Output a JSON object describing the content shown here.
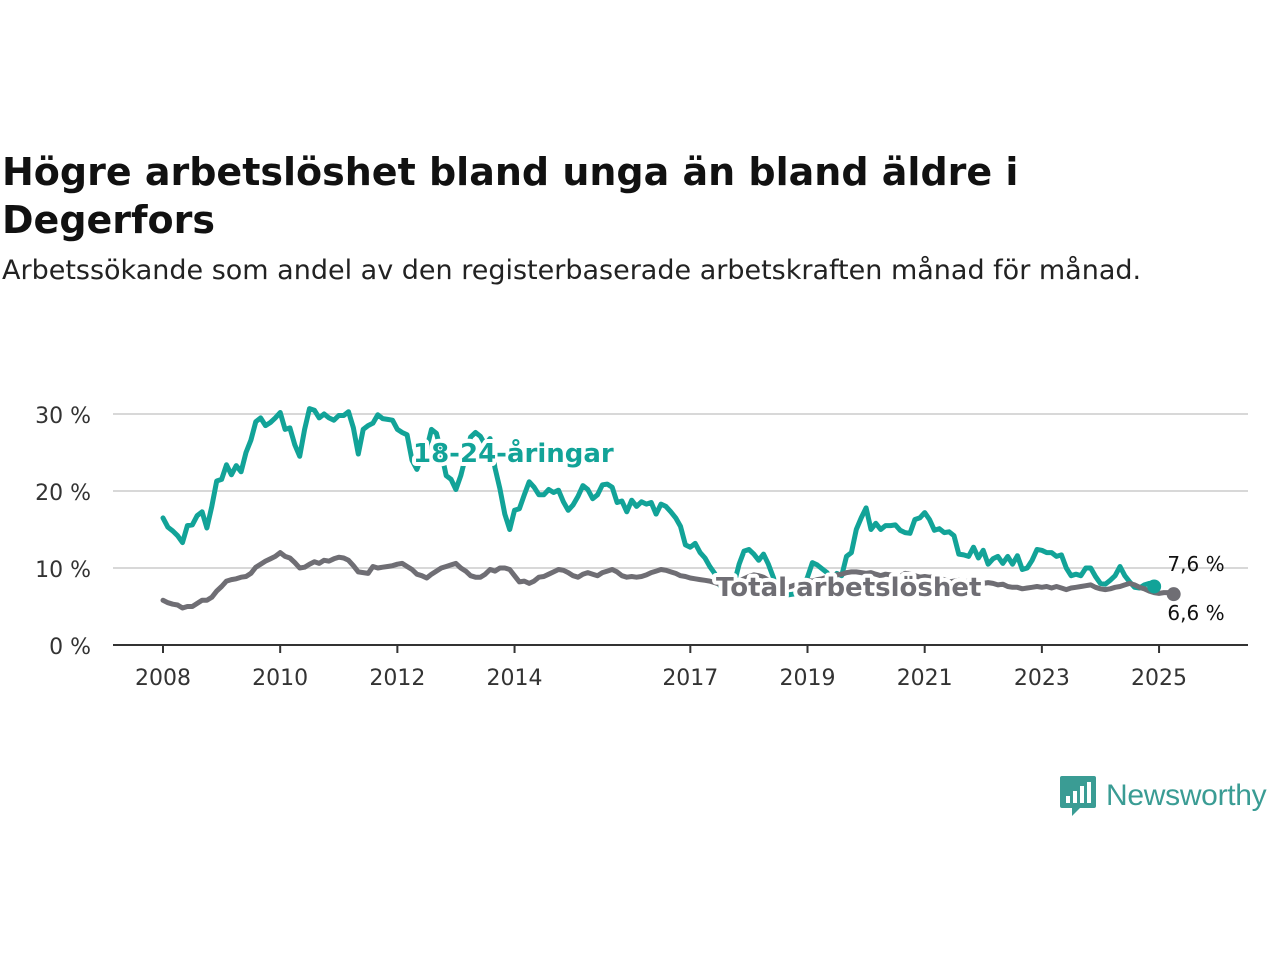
{
  "header": {
    "title": "Högre arbetslöshet bland unga än bland äldre i Degerfors",
    "subtitle": "Arbetssökande som andel av den registerbaserade arbetskraften månad för månad."
  },
  "branding": {
    "logo_text": "Newsworthy",
    "logo_icon": "bar-chart-speech-bubble-icon"
  },
  "colors": {
    "youth": "#12a398",
    "total": "#6f6e74",
    "grid": "#d8d8d8",
    "axis": "#333333"
  },
  "chart_data": {
    "type": "line",
    "title": "Högre arbetslöshet bland unga än bland äldre i Degerfors",
    "xlabel": "",
    "ylabel": "",
    "xlim": [
      2008,
      2025.75
    ],
    "ylim": [
      0,
      30
    ],
    "yticks": [
      0,
      10,
      20,
      30
    ],
    "ytick_labels": [
      "0 %",
      "10 %",
      "20 %",
      "30 %"
    ],
    "xticks": [
      2008,
      2010,
      2012,
      2014,
      2017,
      2019,
      2021,
      2023,
      2025
    ],
    "xtick_labels": [
      "2008",
      "2010",
      "2012",
      "2014",
      "2017",
      "2019",
      "2021",
      "2023",
      "2025"
    ],
    "grid": true,
    "series": [
      {
        "name": "18-24-åringar",
        "label": "18-24-åringar",
        "end_label": "7,6 %",
        "x_start": 2008,
        "step": 0.08333,
        "values": [
          16.5,
          15.3,
          14.8,
          14.2,
          13.3,
          15.5,
          15.6,
          16.8,
          17.3,
          15.2,
          18.0,
          21.3,
          21.5,
          23.4,
          22.1,
          23.3,
          22.5,
          25.0,
          26.6,
          29.0,
          29.5,
          28.5,
          28.9,
          29.5,
          30.2,
          28.0,
          28.2,
          26.0,
          24.5,
          28.0,
          30.7,
          30.5,
          29.5,
          30.0,
          29.5,
          29.2,
          29.8,
          29.8,
          30.3,
          28.2,
          24.8,
          28.0,
          28.5,
          28.8,
          29.9,
          29.4,
          29.3,
          29.2,
          28.0,
          27.6,
          27.3,
          24.0,
          22.8,
          24.5,
          25.5,
          28.0,
          27.5,
          25.0,
          22.0,
          21.5,
          20.2,
          22.0,
          24.5,
          27.0,
          27.6,
          27.1,
          26.0,
          26.8,
          23.0,
          20.3,
          17.0,
          15.0,
          17.5,
          17.7,
          19.5,
          21.2,
          20.5,
          19.5,
          19.5,
          20.2,
          19.8,
          20.1,
          18.6,
          17.5,
          18.2,
          19.3,
          20.7,
          20.2,
          19.0,
          19.5,
          20.8,
          20.9,
          20.5,
          18.5,
          18.7,
          17.3,
          18.8,
          18.0,
          18.6,
          18.3,
          18.5,
          17.0,
          18.3,
          18.0,
          17.3,
          16.5,
          15.4,
          13.0,
          12.7,
          13.2,
          12.0,
          11.3,
          10.2,
          9.3,
          7.8,
          6.8,
          6.6,
          8.0,
          10.5,
          12.2,
          12.4,
          11.8,
          11.0,
          11.8,
          10.5,
          8.8,
          7.0,
          6.5,
          6.5,
          6.6,
          6.8,
          7.5,
          8.8,
          10.7,
          10.4,
          9.9,
          9.4,
          8.4,
          9.3,
          9.0,
          11.5,
          12.0,
          15.0,
          16.5,
          17.8,
          15.0,
          15.8,
          15.0,
          15.5,
          15.5,
          15.6,
          14.9,
          14.6,
          14.5,
          16.3,
          16.5,
          17.2,
          16.3,
          14.9,
          15.1,
          14.6,
          14.7,
          14.2,
          11.8,
          11.7,
          11.5,
          12.7,
          11.3,
          12.3,
          10.5,
          11.2,
          11.5,
          10.6,
          11.5,
          10.5,
          11.6,
          9.8,
          10.0,
          11.0,
          12.4,
          12.3,
          12.0,
          12.0,
          11.5,
          11.7,
          10.0,
          9.0,
          9.2,
          9.0,
          10.0,
          10.0,
          8.9,
          8.0,
          7.9,
          8.4,
          9.0,
          10.2,
          9.0,
          8.2,
          7.5,
          7.4,
          7.8,
          8.0,
          7.6
        ]
      },
      {
        "name": "Total arbetslöshet",
        "label": "Total arbetslöshet",
        "end_label": "6,6 %",
        "x_start": 2008,
        "step": 0.08333,
        "values": [
          5.8,
          5.5,
          5.3,
          5.2,
          4.8,
          5.0,
          5.0,
          5.4,
          5.8,
          5.8,
          6.2,
          7.0,
          7.6,
          8.3,
          8.5,
          8.6,
          8.8,
          8.9,
          9.3,
          10.1,
          10.5,
          10.9,
          11.2,
          11.5,
          12.0,
          11.5,
          11.3,
          10.7,
          10.0,
          10.1,
          10.5,
          10.8,
          10.6,
          11.0,
          10.9,
          11.2,
          11.4,
          11.3,
          11.0,
          10.3,
          9.5,
          9.4,
          9.3,
          10.2,
          10.0,
          10.1,
          10.2,
          10.3,
          10.5,
          10.6,
          10.2,
          9.8,
          9.2,
          9.0,
          8.7,
          9.2,
          9.6,
          10.0,
          10.2,
          10.4,
          10.6,
          10.0,
          9.6,
          9.0,
          8.8,
          8.8,
          9.2,
          9.8,
          9.6,
          10.0,
          10.0,
          9.8,
          9.0,
          8.2,
          8.3,
          8.0,
          8.3,
          8.8,
          8.9,
          9.2,
          9.5,
          9.8,
          9.7,
          9.4,
          9.0,
          8.8,
          9.2,
          9.4,
          9.2,
          9.0,
          9.4,
          9.6,
          9.8,
          9.5,
          9.0,
          8.8,
          8.9,
          8.8,
          8.9,
          9.1,
          9.4,
          9.6,
          9.8,
          9.7,
          9.5,
          9.3,
          9.0,
          8.9,
          8.7,
          8.6,
          8.5,
          8.4,
          8.3,
          8.1,
          7.9,
          7.6,
          7.8,
          8.0,
          8.3,
          8.6,
          8.9,
          9.1,
          9.0,
          8.8,
          8.4,
          8.0,
          7.6,
          7.5,
          7.5,
          7.7,
          7.9,
          8.2,
          8.4,
          8.3,
          8.5,
          8.6,
          8.8,
          9.0,
          9.1,
          9.2,
          9.4,
          9.5,
          9.5,
          9.4,
          9.3,
          9.4,
          9.2,
          9.0,
          9.2,
          9.1,
          9.0,
          8.9,
          9.3,
          9.2,
          9.0,
          8.8,
          8.9,
          8.8,
          8.9,
          8.7,
          8.5,
          8.2,
          8.3,
          8.4,
          8.2,
          8.3,
          8.0,
          8.2,
          8.0,
          8.1,
          8.0,
          7.8,
          7.9,
          7.6,
          7.5,
          7.5,
          7.3,
          7.4,
          7.5,
          7.6,
          7.5,
          7.6,
          7.4,
          7.6,
          7.4,
          7.2,
          7.4,
          7.5,
          7.6,
          7.7,
          7.8,
          7.5,
          7.3,
          7.2,
          7.3,
          7.5,
          7.6,
          7.8,
          8.0,
          7.8,
          7.5,
          7.3,
          7.0,
          6.8,
          6.7,
          6.8,
          6.8,
          6.6
        ]
      }
    ],
    "labels": {
      "youth_label": "18-24-åringar",
      "total_label": "Total arbetslöshet"
    }
  }
}
